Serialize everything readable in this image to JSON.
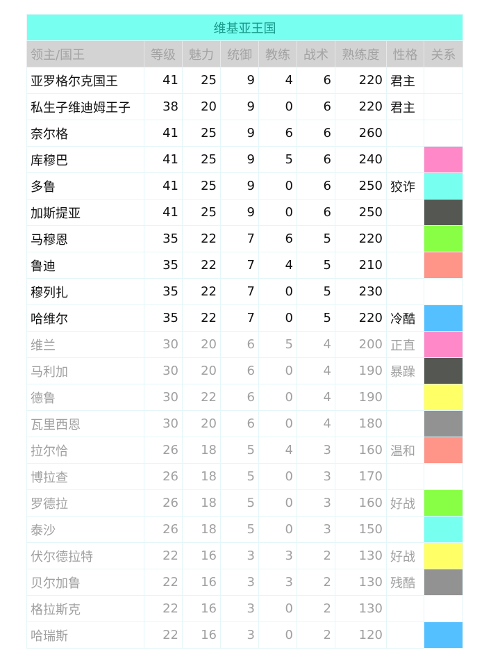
{
  "title": "维基亚王国",
  "headers": [
    "领主/国王",
    "等级",
    "魅力",
    "统御",
    "教练",
    "战术",
    "熟练度",
    "性格",
    "关系"
  ],
  "relation_colors": {
    "pink": "#ff88c8",
    "cyan": "#77fff0",
    "dark": "#555753",
    "green": "#88ff44",
    "salmon": "#ff9488",
    "blue": "#55c0ff",
    "yellow": "#ffff66",
    "gray": "#929292"
  },
  "rows": [
    {
      "name": "亚罗格尔克国王",
      "level": "41",
      "charisma": "25",
      "leadership": "9",
      "trainer": "4",
      "tactics": "6",
      "proficiency": "220",
      "trait": "君主",
      "relation": "",
      "active": true
    },
    {
      "name": "私生子维迪姆王子",
      "level": "38",
      "charisma": "20",
      "leadership": "9",
      "trainer": "0",
      "tactics": "6",
      "proficiency": "220",
      "trait": "君主",
      "relation": "",
      "active": true
    },
    {
      "name": "奈尔格",
      "level": "41",
      "charisma": "25",
      "leadership": "9",
      "trainer": "6",
      "tactics": "6",
      "proficiency": "260",
      "trait": "",
      "relation": "",
      "active": true
    },
    {
      "name": "库穆巴",
      "level": "41",
      "charisma": "25",
      "leadership": "9",
      "trainer": "5",
      "tactics": "6",
      "proficiency": "240",
      "trait": "",
      "relation": "pink",
      "active": true
    },
    {
      "name": "多鲁",
      "level": "41",
      "charisma": "25",
      "leadership": "9",
      "trainer": "0",
      "tactics": "6",
      "proficiency": "250",
      "trait": "狡诈",
      "relation": "cyan",
      "active": true
    },
    {
      "name": "加斯提亚",
      "level": "41",
      "charisma": "25",
      "leadership": "9",
      "trainer": "0",
      "tactics": "6",
      "proficiency": "250",
      "trait": "",
      "relation": "dark",
      "active": true
    },
    {
      "name": "马穆恩",
      "level": "35",
      "charisma": "22",
      "leadership": "7",
      "trainer": "6",
      "tactics": "5",
      "proficiency": "220",
      "trait": "",
      "relation": "green",
      "active": true
    },
    {
      "name": "鲁迪",
      "level": "35",
      "charisma": "22",
      "leadership": "7",
      "trainer": "4",
      "tactics": "5",
      "proficiency": "210",
      "trait": "",
      "relation": "salmon",
      "active": true
    },
    {
      "name": "穆列扎",
      "level": "35",
      "charisma": "22",
      "leadership": "7",
      "trainer": "0",
      "tactics": "5",
      "proficiency": "230",
      "trait": "",
      "relation": "",
      "active": true
    },
    {
      "name": "哈维尔",
      "level": "35",
      "charisma": "22",
      "leadership": "7",
      "trainer": "0",
      "tactics": "5",
      "proficiency": "220",
      "trait": "冷酷",
      "relation": "blue",
      "active": true
    },
    {
      "name": "维兰",
      "level": "30",
      "charisma": "20",
      "leadership": "6",
      "trainer": "5",
      "tactics": "4",
      "proficiency": "200",
      "trait": "正直",
      "relation": "pink",
      "active": false
    },
    {
      "name": "马利加",
      "level": "30",
      "charisma": "20",
      "leadership": "6",
      "trainer": "0",
      "tactics": "4",
      "proficiency": "190",
      "trait": "暴躁",
      "relation": "dark",
      "active": false
    },
    {
      "name": "德鲁",
      "level": "30",
      "charisma": "22",
      "leadership": "6",
      "trainer": "0",
      "tactics": "4",
      "proficiency": "190",
      "trait": "",
      "relation": "yellow",
      "active": false
    },
    {
      "name": "瓦里西恩",
      "level": "30",
      "charisma": "20",
      "leadership": "6",
      "trainer": "0",
      "tactics": "4",
      "proficiency": "180",
      "trait": "",
      "relation": "gray",
      "active": false
    },
    {
      "name": "拉尔恰",
      "level": "26",
      "charisma": "18",
      "leadership": "5",
      "trainer": "4",
      "tactics": "3",
      "proficiency": "160",
      "trait": "温和",
      "relation": "salmon",
      "active": false
    },
    {
      "name": "博拉查",
      "level": "26",
      "charisma": "18",
      "leadership": "5",
      "trainer": "0",
      "tactics": "3",
      "proficiency": "170",
      "trait": "",
      "relation": "",
      "active": false
    },
    {
      "name": "罗德拉",
      "level": "26",
      "charisma": "18",
      "leadership": "5",
      "trainer": "0",
      "tactics": "3",
      "proficiency": "160",
      "trait": "好战",
      "relation": "green",
      "active": false
    },
    {
      "name": "泰沙",
      "level": "26",
      "charisma": "18",
      "leadership": "5",
      "trainer": "0",
      "tactics": "3",
      "proficiency": "150",
      "trait": "",
      "relation": "cyan",
      "active": false
    },
    {
      "name": "伏尔德拉特",
      "level": "22",
      "charisma": "16",
      "leadership": "3",
      "trainer": "3",
      "tactics": "2",
      "proficiency": "130",
      "trait": "好战",
      "relation": "yellow",
      "active": false
    },
    {
      "name": "贝尔加鲁",
      "level": "22",
      "charisma": "16",
      "leadership": "3",
      "trainer": "3",
      "tactics": "2",
      "proficiency": "130",
      "trait": "残酷",
      "relation": "gray",
      "active": false
    },
    {
      "name": "格拉斯克",
      "level": "22",
      "charisma": "16",
      "leadership": "3",
      "trainer": "0",
      "tactics": "2",
      "proficiency": "130",
      "trait": "",
      "relation": "",
      "active": false
    },
    {
      "name": "哈瑞斯",
      "level": "22",
      "charisma": "16",
      "leadership": "3",
      "trainer": "0",
      "tactics": "2",
      "proficiency": "120",
      "trait": "",
      "relation": "blue",
      "active": false
    }
  ]
}
